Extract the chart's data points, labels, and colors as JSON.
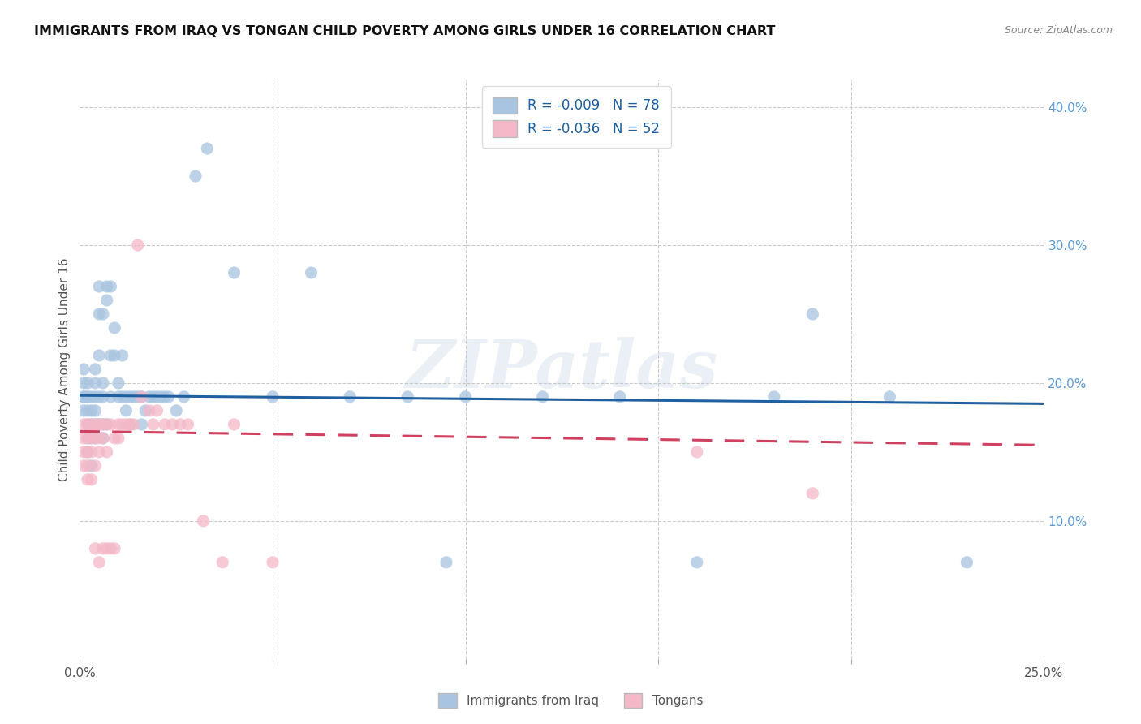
{
  "title": "IMMIGRANTS FROM IRAQ VS TONGAN CHILD POVERTY AMONG GIRLS UNDER 16 CORRELATION CHART",
  "source": "Source: ZipAtlas.com",
  "ylabel": "Child Poverty Among Girls Under 16",
  "xlim": [
    0,
    0.25
  ],
  "ylim": [
    0,
    0.42
  ],
  "x_tick_positions": [
    0.0,
    0.05,
    0.1,
    0.15,
    0.2,
    0.25
  ],
  "x_tick_labels": [
    "0.0%",
    "",
    "",
    "",
    "",
    "25.0%"
  ],
  "y_tick_positions": [
    0.1,
    0.2,
    0.3,
    0.4
  ],
  "y_tick_labels": [
    "10.0%",
    "20.0%",
    "30.0%",
    "40.0%"
  ],
  "legend_iraq_r": "R = -0.009",
  "legend_iraq_n": "N = 78",
  "legend_tonga_r": "R = -0.036",
  "legend_tonga_n": "N = 52",
  "iraq_color": "#a8c4e0",
  "tonga_color": "#f4b8c8",
  "iraq_line_color": "#2060a0",
  "tonga_line_color": "#d04060",
  "watermark": "ZIPatlas",
  "iraq_scatter_x": [
    0.001,
    0.001,
    0.001,
    0.001,
    0.001,
    0.002,
    0.002,
    0.002,
    0.002,
    0.002,
    0.002,
    0.002,
    0.003,
    0.003,
    0.003,
    0.003,
    0.003,
    0.004,
    0.004,
    0.004,
    0.004,
    0.004,
    0.004,
    0.005,
    0.005,
    0.005,
    0.005,
    0.005,
    0.006,
    0.006,
    0.006,
    0.006,
    0.006,
    0.007,
    0.007,
    0.007,
    0.008,
    0.008,
    0.008,
    0.009,
    0.009,
    0.01,
    0.01,
    0.011,
    0.011,
    0.012,
    0.012,
    0.013,
    0.013,
    0.014,
    0.015,
    0.016,
    0.016,
    0.017,
    0.018,
    0.019,
    0.02,
    0.021,
    0.022,
    0.023,
    0.025,
    0.027,
    0.03,
    0.033,
    0.04,
    0.05,
    0.06,
    0.07,
    0.085,
    0.095,
    0.1,
    0.12,
    0.14,
    0.16,
    0.18,
    0.19,
    0.21,
    0.23
  ],
  "iraq_scatter_y": [
    0.19,
    0.2,
    0.21,
    0.19,
    0.18,
    0.2,
    0.19,
    0.18,
    0.17,
    0.19,
    0.16,
    0.15,
    0.17,
    0.18,
    0.19,
    0.16,
    0.14,
    0.2,
    0.19,
    0.18,
    0.17,
    0.16,
    0.21,
    0.19,
    0.17,
    0.22,
    0.25,
    0.27,
    0.19,
    0.2,
    0.17,
    0.16,
    0.25,
    0.27,
    0.26,
    0.17,
    0.22,
    0.19,
    0.27,
    0.22,
    0.24,
    0.2,
    0.19,
    0.19,
    0.22,
    0.19,
    0.18,
    0.19,
    0.17,
    0.19,
    0.19,
    0.19,
    0.17,
    0.18,
    0.19,
    0.19,
    0.19,
    0.19,
    0.19,
    0.19,
    0.18,
    0.19,
    0.35,
    0.37,
    0.28,
    0.19,
    0.28,
    0.19,
    0.19,
    0.07,
    0.19,
    0.19,
    0.19,
    0.07,
    0.19,
    0.25,
    0.19,
    0.07
  ],
  "tonga_scatter_x": [
    0.001,
    0.001,
    0.001,
    0.001,
    0.002,
    0.002,
    0.002,
    0.002,
    0.002,
    0.003,
    0.003,
    0.003,
    0.003,
    0.004,
    0.004,
    0.004,
    0.004,
    0.005,
    0.005,
    0.005,
    0.005,
    0.006,
    0.006,
    0.006,
    0.007,
    0.007,
    0.007,
    0.008,
    0.008,
    0.009,
    0.009,
    0.01,
    0.01,
    0.011,
    0.012,
    0.013,
    0.014,
    0.015,
    0.016,
    0.018,
    0.019,
    0.02,
    0.022,
    0.024,
    0.026,
    0.028,
    0.032,
    0.037,
    0.04,
    0.05,
    0.16,
    0.19
  ],
  "tonga_scatter_y": [
    0.16,
    0.17,
    0.15,
    0.14,
    0.17,
    0.16,
    0.15,
    0.14,
    0.13,
    0.17,
    0.16,
    0.15,
    0.13,
    0.17,
    0.16,
    0.14,
    0.08,
    0.17,
    0.16,
    0.15,
    0.07,
    0.17,
    0.16,
    0.08,
    0.17,
    0.15,
    0.08,
    0.17,
    0.08,
    0.16,
    0.08,
    0.17,
    0.16,
    0.17,
    0.17,
    0.17,
    0.17,
    0.3,
    0.19,
    0.18,
    0.17,
    0.18,
    0.17,
    0.17,
    0.17,
    0.17,
    0.1,
    0.07,
    0.17,
    0.07,
    0.15,
    0.12
  ]
}
